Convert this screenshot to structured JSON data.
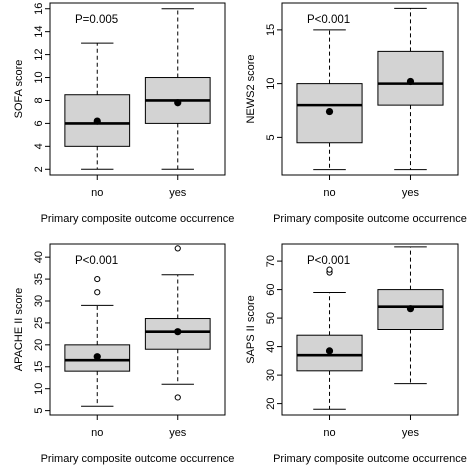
{
  "chart_data": [
    {
      "type": "box",
      "ylabel": "SOFA score",
      "xlabel": "Primary composite outcome occurrence",
      "annotation": "P=0.005",
      "ylim": [
        1.5,
        16.5
      ],
      "yticks": [
        2,
        4,
        6,
        8,
        10,
        12,
        14,
        16
      ],
      "categories": [
        "no",
        "yes"
      ],
      "boxes": [
        {
          "category": "no",
          "min": 2,
          "q1": 4,
          "median": 6,
          "q3": 8.5,
          "max": 13,
          "mean": 6.2,
          "outliers": []
        },
        {
          "category": "yes",
          "min": 2,
          "q1": 6,
          "median": 8,
          "q3": 10,
          "max": 16,
          "mean": 7.8,
          "outliers": []
        }
      ]
    },
    {
      "type": "box",
      "ylabel": "NEWS2 score",
      "xlabel": "Primary composite outcome occurrence",
      "annotation": "P<0.001",
      "ylim": [
        1.5,
        17.5
      ],
      "yticks": [
        5,
        10,
        15
      ],
      "categories": [
        "no",
        "yes"
      ],
      "boxes": [
        {
          "category": "no",
          "min": 2,
          "q1": 4.5,
          "median": 8,
          "q3": 10,
          "max": 15,
          "mean": 7.4,
          "outliers": []
        },
        {
          "category": "yes",
          "min": 2,
          "q1": 8,
          "median": 10,
          "q3": 13,
          "max": 17,
          "mean": 10.2,
          "outliers": []
        }
      ]
    },
    {
      "type": "box",
      "ylabel": "APACHE II score",
      "xlabel": "Primary composite outcome occurrence",
      "annotation": "P<0.001",
      "ylim": [
        4,
        43
      ],
      "yticks": [
        5,
        10,
        15,
        20,
        25,
        30,
        35,
        40
      ],
      "categories": [
        "no",
        "yes"
      ],
      "boxes": [
        {
          "category": "no",
          "min": 6,
          "q1": 14,
          "median": 16.5,
          "q3": 20,
          "max": 29,
          "mean": 17.3,
          "outliers": [
            32,
            35
          ]
        },
        {
          "category": "yes",
          "min": 11,
          "q1": 19,
          "median": 23,
          "q3": 26,
          "max": 36,
          "mean": 23,
          "outliers": [
            8,
            42
          ]
        }
      ]
    },
    {
      "type": "box",
      "ylabel": "SAPS II score",
      "xlabel": "Primary composite outcome occurrence",
      "annotation": "P<0.001",
      "ylim": [
        16,
        76
      ],
      "yticks": [
        20,
        30,
        40,
        50,
        60,
        70
      ],
      "categories": [
        "no",
        "yes"
      ],
      "boxes": [
        {
          "category": "no",
          "min": 18,
          "q1": 31.5,
          "median": 37,
          "q3": 44,
          "max": 59,
          "mean": 38.5,
          "outliers": [
            66,
            67
          ]
        },
        {
          "category": "yes",
          "min": 27,
          "q1": 46,
          "median": 54,
          "q3": 60,
          "max": 75,
          "mean": 53.3,
          "outliers": []
        }
      ]
    }
  ]
}
